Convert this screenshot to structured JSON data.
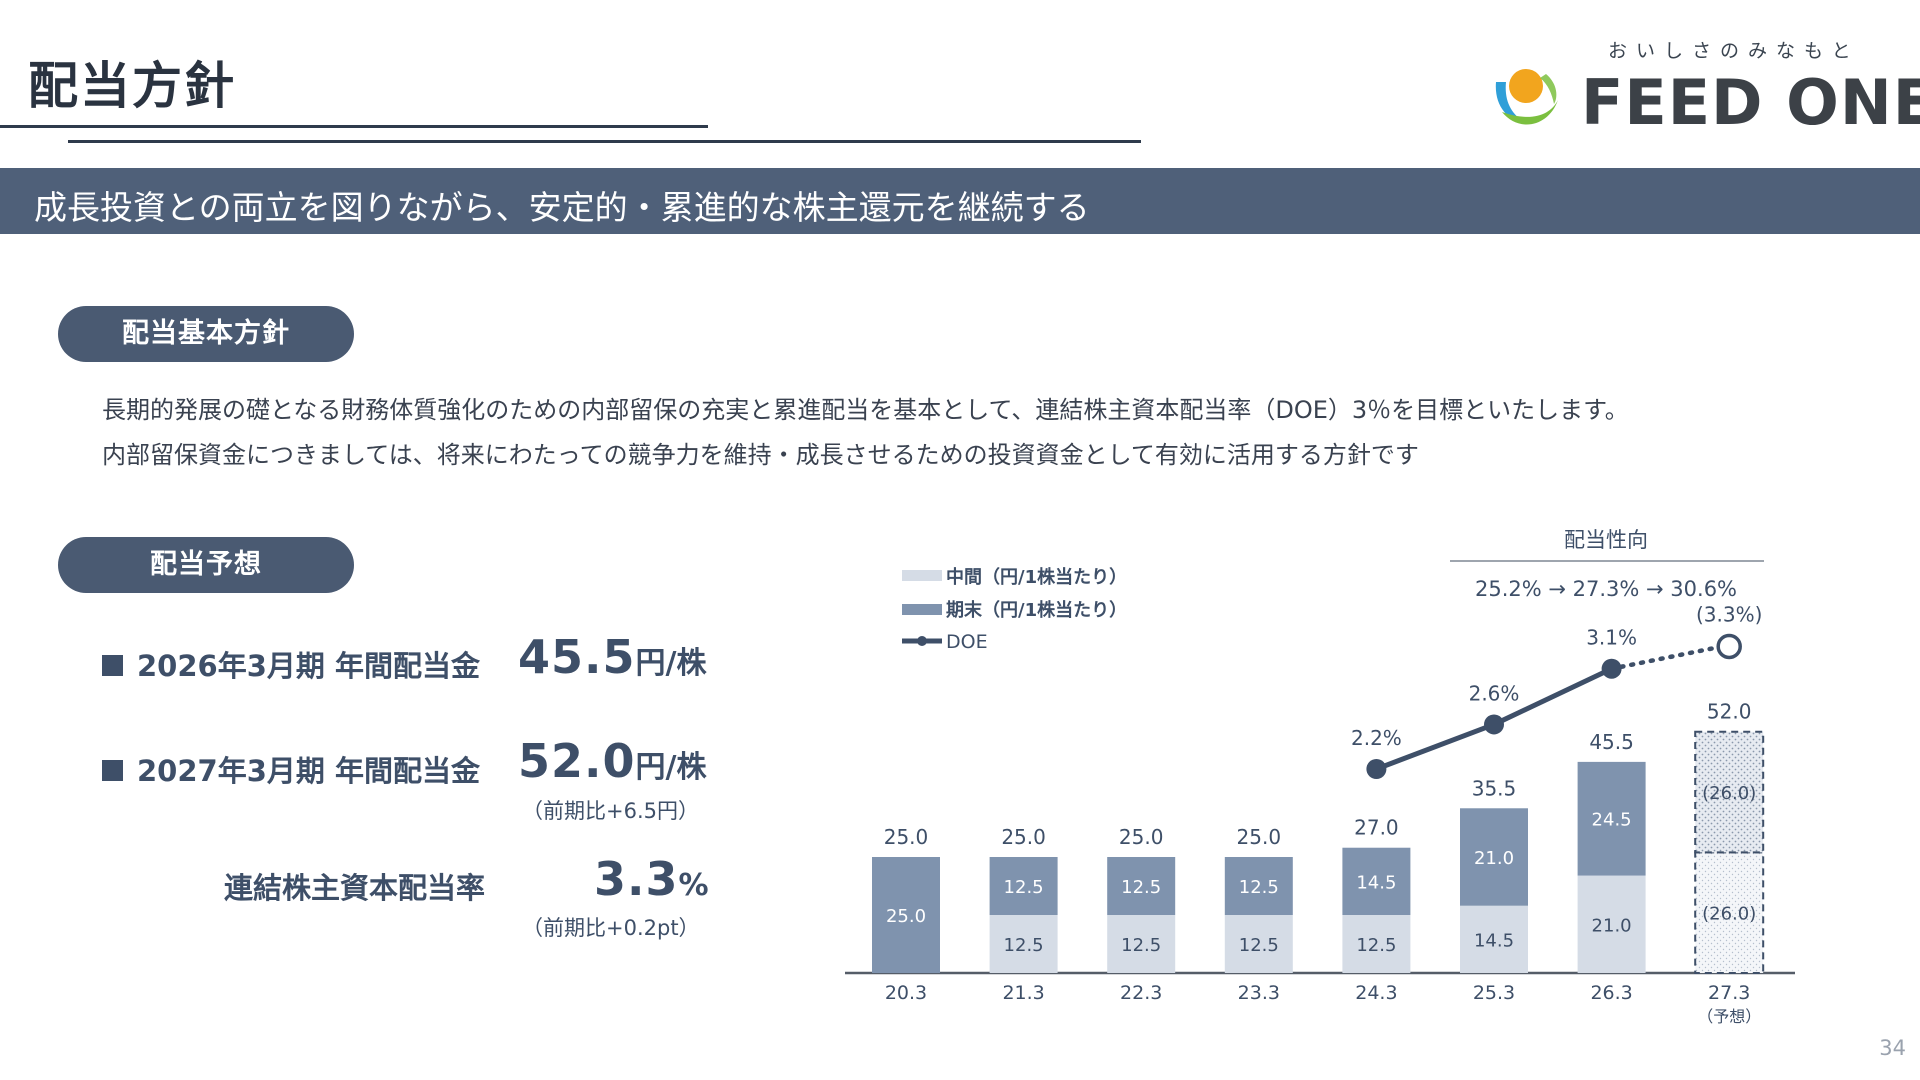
{
  "page_title": "配当方針",
  "logo": {
    "tagline": "おいしさのみなもと",
    "name": "FEED ONE"
  },
  "banner": "成長投資との両立を図りながら、安定的・累進的な株主還元を継続する",
  "basic_policy": {
    "heading": "配当基本方針",
    "line1": "長期的発展の礎となる財務体質強化のための内部留保の充実と累進配当を基本として、連結株主資本配当率（DOE）3％を目標といたします。",
    "line2": "内部留保資金につきましては、将来にわたっての競争力を維持・成長させるための投資資金として有効に活用する方針です"
  },
  "forecast": {
    "heading": "配当予想",
    "item1": {
      "label": "2026年3月期 年間配当金",
      "value": "45.5",
      "unit": "円/株"
    },
    "item2": {
      "label": "2027年3月期 年間配当金",
      "value": "52.0",
      "unit": "円/株",
      "note": "（前期比+6.5円）"
    },
    "item3": {
      "label": "連結株主資本配当率",
      "value": "3.3",
      "unit": "%",
      "note": "（前期比+0.2pt）"
    }
  },
  "payout": {
    "title": "配当性向",
    "values": "25.2% → 27.3% → 30.6%"
  },
  "colors": {
    "interim": "#d5dce6",
    "year_end": "#7f93ae",
    "doe_line": "#3e4f68",
    "axis": "#555d68",
    "banner": "#4f6079"
  },
  "chart_data": {
    "type": "bar",
    "stacked": true,
    "categories": [
      "20.3",
      "21.3",
      "22.3",
      "23.3",
      "24.3",
      "25.3",
      "26.3",
      "27.3"
    ],
    "category_note": {
      "27.3": "（予想）"
    },
    "legend": {
      "position": "top-left",
      "interim": "中間（円/1株当たり）",
      "year_end": "期末（円/1株当たり）",
      "doe": "DOE"
    },
    "series": [
      {
        "name": "中間（円/1株当たり）",
        "values": [
          0,
          12.5,
          12.5,
          12.5,
          12.5,
          14.5,
          21.0,
          26.0
        ]
      },
      {
        "name": "期末（円/1株当たり）",
        "values": [
          25.0,
          12.5,
          12.5,
          12.5,
          14.5,
          21.0,
          24.5,
          26.0
        ]
      }
    ],
    "totals": [
      25.0,
      25.0,
      25.0,
      25.0,
      27.0,
      35.5,
      45.5,
      52.0
    ],
    "forecast_flags": [
      false,
      false,
      false,
      false,
      false,
      false,
      false,
      true
    ],
    "segment_labels": {
      "interim": [
        "",
        "12.5",
        "12.5",
        "12.5",
        "12.5",
        "14.5",
        "21.0",
        "(26.0)"
      ],
      "year_end": [
        "25.0",
        "12.5",
        "12.5",
        "12.5",
        "14.5",
        "21.0",
        "24.5",
        "(26.0)"
      ]
    },
    "total_labels": [
      "25.0",
      "25.0",
      "25.0",
      "25.0",
      "27.0",
      "35.5",
      "45.5",
      "52.0"
    ],
    "doe": {
      "name": "DOE",
      "categories": [
        "24.3",
        "25.3",
        "26.3",
        "27.3"
      ],
      "values": [
        2.2,
        2.6,
        3.1,
        3.3
      ],
      "labels": [
        "2.2%",
        "2.6%",
        "3.1%",
        "(3.3%)"
      ],
      "forecast_last": true
    },
    "ylim": [
      0,
      60
    ]
  }
}
